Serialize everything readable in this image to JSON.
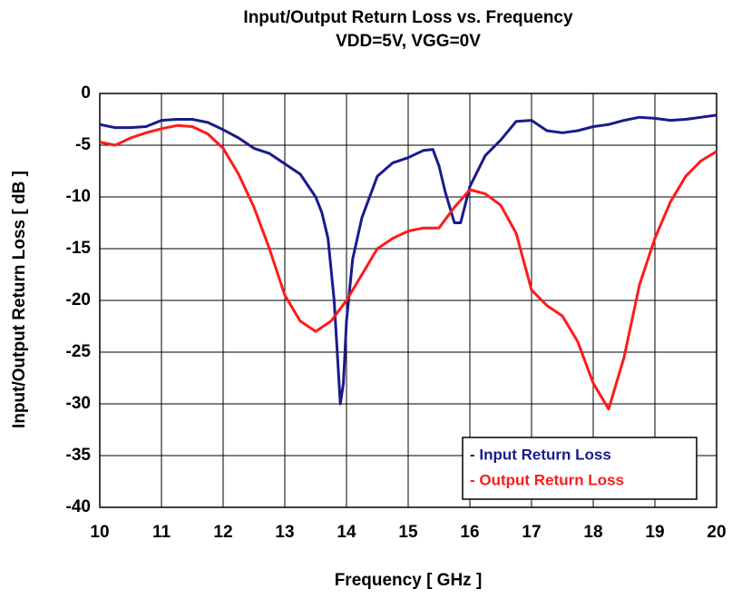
{
  "chart_data": {
    "type": "line",
    "title": "Input/Output Return Loss vs. Frequency",
    "subtitle": "VDD=5V, VGG=0V",
    "x_label": "Frequency [ GHz ]",
    "y_label": "Input/Output Return Loss [ dB ]",
    "xlim": [
      10,
      20
    ],
    "xticks": [
      10,
      11,
      12,
      13,
      14,
      15,
      16,
      17,
      18,
      19,
      20
    ],
    "ylim": [
      -40,
      0
    ],
    "yticks": [
      0,
      -5,
      -10,
      -15,
      -20,
      -25,
      -30,
      -35,
      -40
    ],
    "grid": true,
    "legend": "lower right",
    "series": [
      {
        "name": "- Input Return Loss",
        "color": "#1a1a8c",
        "x": [
          10,
          10.25,
          10.5,
          10.75,
          11,
          11.25,
          11.5,
          11.75,
          12,
          12.25,
          12.5,
          12.75,
          13,
          13.25,
          13.5,
          13.6,
          13.7,
          13.8,
          13.85,
          13.9,
          13.95,
          14,
          14.1,
          14.25,
          14.5,
          14.75,
          15,
          15.25,
          15.4,
          15.5,
          15.6,
          15.75,
          15.85,
          16,
          16.25,
          16.5,
          16.75,
          17,
          17.25,
          17.5,
          17.75,
          18,
          18.25,
          18.5,
          18.75,
          19,
          19.25,
          19.5,
          19.75,
          20
        ],
        "values": [
          -3.0,
          -3.3,
          -3.3,
          -3.2,
          -2.6,
          -2.5,
          -2.5,
          -2.8,
          -3.5,
          -4.3,
          -5.3,
          -5.8,
          -6.8,
          -7.8,
          -10,
          -11.5,
          -14,
          -20,
          -25,
          -30,
          -28,
          -22,
          -16,
          -12,
          -8,
          -6.7,
          -6.2,
          -5.5,
          -5.4,
          -7,
          -9.5,
          -12.5,
          -12.5,
          -9,
          -6,
          -4.5,
          -2.7,
          -2.6,
          -3.6,
          -3.8,
          -3.6,
          -3.2,
          -3.0,
          -2.6,
          -2.3,
          -2.4,
          -2.6,
          -2.5,
          -2.3,
          -2.1
        ]
      },
      {
        "name": "- Output Return Loss",
        "color": "#ff1a1a",
        "x": [
          10,
          10.25,
          10.5,
          10.75,
          11,
          11.25,
          11.5,
          11.75,
          12,
          12.25,
          12.5,
          12.75,
          13,
          13.25,
          13.5,
          13.75,
          14,
          14.25,
          14.5,
          14.75,
          15,
          15.25,
          15.5,
          15.75,
          16,
          16.25,
          16.5,
          16.75,
          17,
          17.25,
          17.5,
          17.75,
          18,
          18.25,
          18.5,
          18.75,
          19,
          19.25,
          19.5,
          19.75,
          20
        ],
        "values": [
          -4.7,
          -5.0,
          -4.3,
          -3.8,
          -3.4,
          -3.1,
          -3.2,
          -3.9,
          -5.3,
          -7.8,
          -11,
          -15,
          -19.5,
          -22,
          -23,
          -22,
          -20,
          -17.5,
          -15,
          -14,
          -13.3,
          -13,
          -13,
          -11,
          -9.3,
          -9.7,
          -10.8,
          -13.5,
          -19,
          -20.5,
          -21.5,
          -24,
          -28,
          -30.5,
          -25.5,
          -18.5,
          -14,
          -10.5,
          -8,
          -6.5,
          -5.6
        ]
      }
    ]
  }
}
